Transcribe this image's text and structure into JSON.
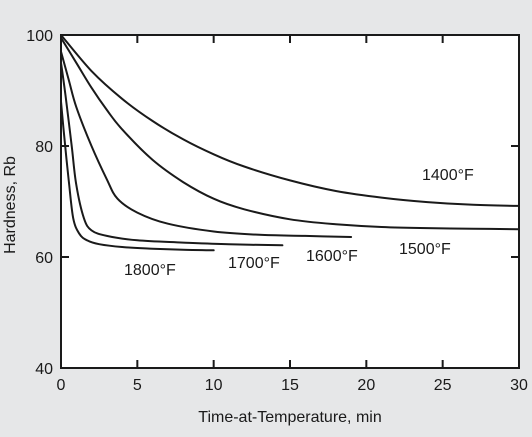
{
  "chart_data": {
    "type": "line",
    "title": "",
    "xlabel": "Time-at-Temperature, min",
    "ylabel": "Hardness, Rb",
    "xlim": [
      0,
      30
    ],
    "ylim": [
      40,
      100
    ],
    "xticks": [
      0,
      5,
      10,
      15,
      20,
      25,
      30
    ],
    "yticks": [
      40,
      60,
      80,
      100
    ],
    "grid": false,
    "legend": "none",
    "series": [
      {
        "name": "1400°F",
        "x": [
          0,
          2,
          4,
          6,
          8,
          10,
          12,
          15,
          18,
          21,
          24,
          27,
          30
        ],
        "y": [
          100,
          93.5,
          88.5,
          84.5,
          81.2,
          78.5,
          76.3,
          73.8,
          71.9,
          70.7,
          69.9,
          69.4,
          69.2
        ]
      },
      {
        "name": "1500°F",
        "x": [
          0,
          1,
          2,
          3,
          4,
          6,
          8,
          10,
          12,
          15,
          18,
          21,
          24,
          27,
          30
        ],
        "y": [
          99.5,
          95,
          90.5,
          86.5,
          83,
          77.5,
          73.5,
          70.5,
          68.6,
          66.8,
          65.9,
          65.4,
          65.2,
          65.1,
          65
        ]
      },
      {
        "name": "1600°F",
        "x": [
          0,
          0.5,
          1,
          2,
          3,
          3.7,
          5,
          7,
          10,
          13,
          16,
          19
        ],
        "y": [
          97,
          92,
          87,
          80,
          74,
          70.5,
          68,
          66,
          64.6,
          64,
          63.8,
          63.6
        ]
      },
      {
        "name": "1700°F",
        "x": [
          0,
          0.3,
          0.7,
          1,
          1.5,
          2,
          3,
          5,
          8,
          11,
          14.5
        ],
        "y": [
          95,
          89,
          80,
          73,
          67,
          64.8,
          63.8,
          63,
          62.6,
          62.3,
          62.1
        ]
      },
      {
        "name": "1800°F",
        "x": [
          0,
          0.2,
          0.5,
          0.8,
          1.2,
          1.7,
          2.5,
          4,
          6,
          8,
          10
        ],
        "y": [
          88,
          82,
          74,
          67,
          64.2,
          63,
          62.3,
          61.8,
          61.5,
          61.3,
          61.2
        ]
      }
    ]
  }
}
